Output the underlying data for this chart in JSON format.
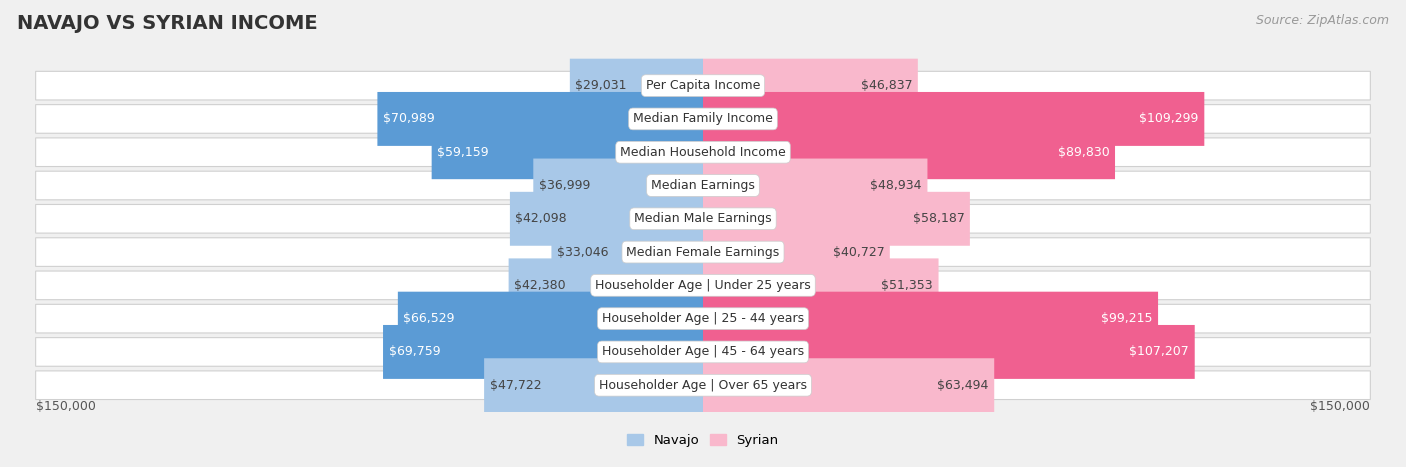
{
  "title": "NAVAJO VS SYRIAN INCOME",
  "source": "Source: ZipAtlas.com",
  "max_value": 150000,
  "categories": [
    "Per Capita Income",
    "Median Family Income",
    "Median Household Income",
    "Median Earnings",
    "Median Male Earnings",
    "Median Female Earnings",
    "Householder Age | Under 25 years",
    "Householder Age | 25 - 44 years",
    "Householder Age | 45 - 64 years",
    "Householder Age | Over 65 years"
  ],
  "navajo_values": [
    29031,
    70989,
    59159,
    36999,
    42098,
    33046,
    42380,
    66529,
    69759,
    47722
  ],
  "syrian_values": [
    46837,
    109299,
    89830,
    48934,
    58187,
    40727,
    51353,
    99215,
    107207,
    63494
  ],
  "navajo_labels": [
    "$29,031",
    "$70,989",
    "$59,159",
    "$36,999",
    "$42,098",
    "$33,046",
    "$42,380",
    "$66,529",
    "$69,759",
    "$47,722"
  ],
  "syrian_labels": [
    "$46,837",
    "$109,299",
    "$89,830",
    "$48,934",
    "$58,187",
    "$40,727",
    "$51,353",
    "$99,215",
    "$107,207",
    "$63,494"
  ],
  "navajo_color_light": "#a8c8e8",
  "navajo_color_dark": "#5b9bd5",
  "syrian_color_light": "#f9b8cc",
  "syrian_color_dark": "#f06090",
  "navajo_highlight": [
    false,
    true,
    true,
    false,
    false,
    false,
    false,
    true,
    true,
    false
  ],
  "syrian_highlight": [
    false,
    true,
    true,
    false,
    false,
    false,
    false,
    true,
    true,
    false
  ],
  "bg_color": "#f0f0f0",
  "row_bg": "white",
  "label_color_dark": "#444444",
  "label_color_white": "#ffffff",
  "title_fontsize": 14,
  "label_fontsize": 9,
  "cat_fontsize": 9
}
